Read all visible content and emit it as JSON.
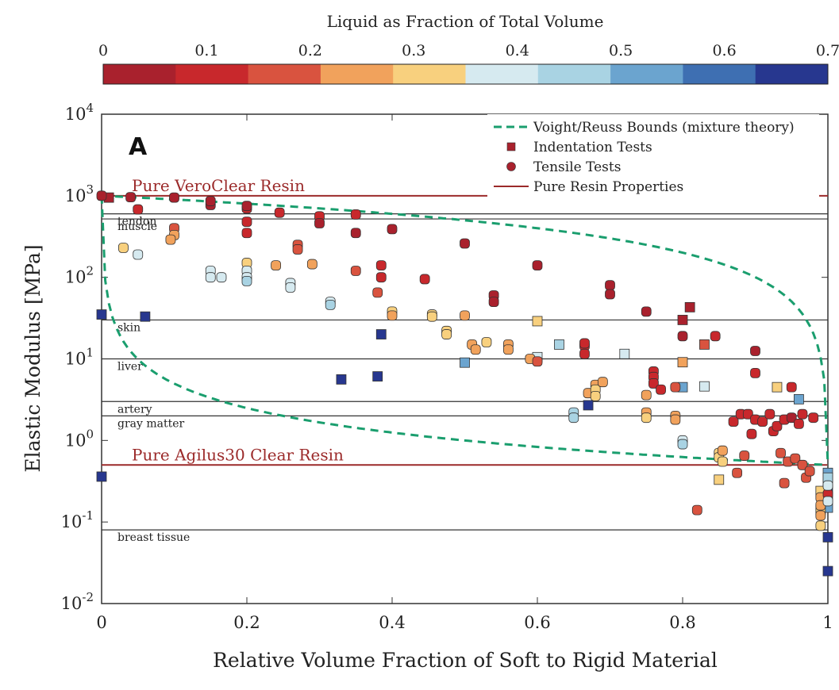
{
  "colorbar": {
    "title": "Liquid as Fraction of Total Volume",
    "ticks": [
      "0",
      "0.1",
      "0.2",
      "0.3",
      "0.4",
      "0.5",
      "0.6",
      "0.7"
    ],
    "range": [
      0,
      0.7
    ],
    "colors": [
      "#a9212d",
      "#c8282c",
      "#d9533f",
      "#f1a25c",
      "#f8d07e",
      "#d6eaf0",
      "#a9d3e3",
      "#6ba4cf",
      "#3e6fb2",
      "#27378f"
    ]
  },
  "chart_data": {
    "type": "scatter",
    "panel_label": "A",
    "xlabel": "Relative Volume Fraction of Soft to Rigid Material",
    "ylabel": "Elastic Modulus [MPa]",
    "xlim": [
      0,
      1
    ],
    "ylim": [
      0.01,
      10000
    ],
    "yscale": "log",
    "x_ticks": [
      "0",
      "0.2",
      "0.4",
      "0.6",
      "0.8",
      "1"
    ],
    "x_tick_values": [
      0,
      0.2,
      0.4,
      0.6,
      0.8,
      1
    ],
    "y_ticks": [
      {
        "value": 0.01,
        "base": "10",
        "exp": "-2"
      },
      {
        "value": 0.1,
        "base": "10",
        "exp": "-1"
      },
      {
        "value": 1,
        "base": "10",
        "exp": "0"
      },
      {
        "value": 10,
        "base": "10",
        "exp": "1"
      },
      {
        "value": 100,
        "base": "10",
        "exp": "2"
      },
      {
        "value": 1000,
        "base": "10",
        "exp": "3"
      },
      {
        "value": 10000,
        "base": "10",
        "exp": "4"
      }
    ],
    "legend_position": "top-right",
    "legend": [
      {
        "label": "Voight/Reuss Bounds (mixture theory)",
        "kind": "dashed",
        "color": "#1a9e6e"
      },
      {
        "label": "Indentation Tests",
        "kind": "square",
        "color": "#a9212d"
      },
      {
        "label": "Tensile Tests",
        "kind": "circle",
        "color": "#a9212d"
      },
      {
        "label": "Pure Resin Properties",
        "kind": "line",
        "color": "#9b2a2a"
      }
    ],
    "pure_resins": [
      {
        "label": "Pure VeroClear Resin",
        "value": 1000,
        "color": "#9b2a2a"
      },
      {
        "label": "Pure Agilus30 Clear Resin",
        "value": 0.5,
        "color": "#9b2a2a"
      }
    ],
    "tissues": [
      {
        "label": "tendon",
        "value": 600
      },
      {
        "label": "muscle",
        "value": 520
      },
      {
        "label": "skin",
        "value": 30
      },
      {
        "label": "liver",
        "value": 10
      },
      {
        "label": "artery",
        "value": 3
      },
      {
        "label": "gray matter",
        "value": 2
      },
      {
        "label": "breast tissue",
        "value": 0.08
      }
    ],
    "bounds": {
      "E_rigid": 1000,
      "E_soft": 0.5,
      "color": "#1a9e6e"
    },
    "series": [
      {
        "name": "Indentation Tests",
        "marker": "square",
        "points": [
          [
            0.0,
            35,
            0.69
          ],
          [
            0.0,
            0.36,
            0.69
          ],
          [
            0.01,
            950,
            0.02
          ],
          [
            0.06,
            33,
            0.69
          ],
          [
            0.33,
            5.6,
            0.69
          ],
          [
            0.38,
            6.1,
            0.69
          ],
          [
            0.385,
            20,
            0.66
          ],
          [
            0.5,
            9,
            0.55
          ],
          [
            0.6,
            29,
            0.34
          ],
          [
            0.6,
            10.5,
            0.4
          ],
          [
            0.63,
            15,
            0.42
          ],
          [
            0.67,
            2.7,
            0.69
          ],
          [
            0.72,
            11.5,
            0.38
          ],
          [
            0.8,
            4.5,
            0.55
          ],
          [
            0.8,
            9.1,
            0.23
          ],
          [
            0.8,
            30,
            0.04
          ],
          [
            0.81,
            43,
            0.05
          ],
          [
            0.83,
            4.6,
            0.38
          ],
          [
            0.83,
            15,
            0.16
          ],
          [
            0.85,
            0.33,
            0.3
          ],
          [
            0.93,
            4.5,
            0.32
          ],
          [
            0.96,
            3.2,
            0.52
          ],
          [
            1.0,
            0.065,
            0.69
          ],
          [
            1.0,
            0.025,
            0.69
          ],
          [
            1.0,
            0.4,
            0.52
          ],
          [
            1.0,
            0.3,
            0.55
          ],
          [
            1.0,
            0.25,
            0.69
          ],
          [
            1.0,
            0.2,
            0.45
          ],
          [
            1.0,
            0.15,
            0.5
          ],
          [
            0.99,
            0.24,
            0.3
          ],
          [
            0.99,
            0.14,
            0.3
          ],
          [
            1.0,
            0.35,
            0.48
          ]
        ]
      },
      {
        "name": "Tensile Tests",
        "marker": "circle",
        "points": [
          [
            0.0,
            1000,
            0.02
          ],
          [
            0.04,
            960,
            0.04
          ],
          [
            0.05,
            680,
            0.1
          ],
          [
            0.1,
            950,
            0.03
          ],
          [
            0.15,
            770,
            0.06
          ],
          [
            0.15,
            860,
            0.04
          ],
          [
            0.2,
            700,
            0.07
          ],
          [
            0.2,
            750,
            0.05
          ],
          [
            0.2,
            480,
            0.09
          ],
          [
            0.2,
            350,
            0.11
          ],
          [
            0.245,
            620,
            0.08
          ],
          [
            0.3,
            560,
            0.08
          ],
          [
            0.3,
            460,
            0.06
          ],
          [
            0.35,
            590,
            0.08
          ],
          [
            0.35,
            350,
            0.04
          ],
          [
            0.4,
            390,
            0.05
          ],
          [
            0.5,
            260,
            0.04
          ],
          [
            0.6,
            140,
            0.05
          ],
          [
            0.7,
            80,
            0.04
          ],
          [
            0.7,
            62,
            0.06
          ],
          [
            0.54,
            60,
            0.04
          ],
          [
            0.54,
            50,
            0.06
          ],
          [
            0.385,
            140,
            0.08
          ],
          [
            0.385,
            100,
            0.1
          ],
          [
            0.35,
            120,
            0.16
          ],
          [
            0.38,
            65,
            0.16
          ],
          [
            0.445,
            95,
            0.09
          ],
          [
            0.1,
            400,
            0.2
          ],
          [
            0.1,
            330,
            0.24
          ],
          [
            0.095,
            290,
            0.27
          ],
          [
            0.03,
            230,
            0.32
          ],
          [
            0.05,
            190,
            0.38
          ],
          [
            0.15,
            120,
            0.38
          ],
          [
            0.15,
            100,
            0.4
          ],
          [
            0.165,
            100,
            0.41
          ],
          [
            0.2,
            150,
            0.34
          ],
          [
            0.2,
            120,
            0.36
          ],
          [
            0.2,
            100,
            0.39
          ],
          [
            0.2,
            90,
            0.42
          ],
          [
            0.26,
            85,
            0.39
          ],
          [
            0.26,
            75,
            0.41
          ],
          [
            0.315,
            50,
            0.41
          ],
          [
            0.315,
            46,
            0.43
          ],
          [
            0.24,
            140,
            0.24
          ],
          [
            0.27,
            250,
            0.16
          ],
          [
            0.27,
            220,
            0.18
          ],
          [
            0.29,
            145,
            0.27
          ],
          [
            0.4,
            38,
            0.3
          ],
          [
            0.4,
            34,
            0.26
          ],
          [
            0.455,
            35,
            0.28
          ],
          [
            0.455,
            33,
            0.3
          ],
          [
            0.5,
            34,
            0.26
          ],
          [
            0.475,
            22,
            0.28
          ],
          [
            0.475,
            20,
            0.3
          ],
          [
            0.51,
            15,
            0.27
          ],
          [
            0.515,
            13,
            0.26
          ],
          [
            0.53,
            16,
            0.28
          ],
          [
            0.56,
            15,
            0.22
          ],
          [
            0.56,
            13,
            0.24
          ],
          [
            0.59,
            10,
            0.25
          ],
          [
            0.6,
            9.3,
            0.2
          ],
          [
            0.665,
            14.5,
            0.1
          ],
          [
            0.665,
            11.5,
            0.12
          ],
          [
            0.665,
            15.5,
            0.08
          ],
          [
            0.65,
            2.2,
            0.42
          ],
          [
            0.65,
            1.9,
            0.44
          ],
          [
            0.67,
            3.8,
            0.25
          ],
          [
            0.68,
            4.8,
            0.27
          ],
          [
            0.68,
            4.2,
            0.3
          ],
          [
            0.68,
            3.5,
            0.29
          ],
          [
            0.69,
            5.2,
            0.26
          ],
          [
            0.75,
            38,
            0.05
          ],
          [
            0.75,
            3.6,
            0.22
          ],
          [
            0.75,
            2.2,
            0.25
          ],
          [
            0.75,
            1.9,
            0.28
          ],
          [
            0.76,
            7,
            0.07
          ],
          [
            0.76,
            6,
            0.09
          ],
          [
            0.76,
            5,
            0.11
          ],
          [
            0.77,
            4.2,
            0.12
          ],
          [
            0.79,
            4.5,
            0.2
          ],
          [
            0.79,
            2,
            0.24
          ],
          [
            0.79,
            1.8,
            0.26
          ],
          [
            0.8,
            1,
            0.4
          ],
          [
            0.8,
            0.9,
            0.42
          ],
          [
            0.8,
            19,
            0.06
          ],
          [
            0.82,
            0.14,
            0.2
          ],
          [
            0.845,
            19,
            0.08
          ],
          [
            0.85,
            0.7,
            0.28
          ],
          [
            0.85,
            0.62,
            0.3
          ],
          [
            0.855,
            0.55,
            0.32
          ],
          [
            0.855,
            0.75,
            0.26
          ],
          [
            0.87,
            1.7,
            0.12
          ],
          [
            0.875,
            0.4,
            0.2
          ],
          [
            0.88,
            2.1,
            0.12
          ],
          [
            0.885,
            0.65,
            0.14
          ],
          [
            0.89,
            2.1,
            0.1
          ],
          [
            0.895,
            1.2,
            0.09
          ],
          [
            0.9,
            6.7,
            0.07
          ],
          [
            0.9,
            12.5,
            0.05
          ],
          [
            0.9,
            1.8,
            0.11
          ],
          [
            0.91,
            1.7,
            0.12
          ],
          [
            0.92,
            2.1,
            0.1
          ],
          [
            0.925,
            1.3,
            0.11
          ],
          [
            0.93,
            1.5,
            0.1
          ],
          [
            0.935,
            0.7,
            0.2
          ],
          [
            0.94,
            1.8,
            0.12
          ],
          [
            0.94,
            0.3,
            0.2
          ],
          [
            0.945,
            0.55,
            0.16
          ],
          [
            0.95,
            4.5,
            0.11
          ],
          [
            0.95,
            1.9,
            0.06
          ],
          [
            0.955,
            0.6,
            0.14
          ],
          [
            0.96,
            1.6,
            0.12
          ],
          [
            0.965,
            2.1,
            0.11
          ],
          [
            0.965,
            0.5,
            0.2
          ],
          [
            0.97,
            0.35,
            0.18
          ],
          [
            0.975,
            0.42,
            0.2
          ],
          [
            0.98,
            1.9,
            0.1
          ],
          [
            0.99,
            0.2,
            0.25
          ],
          [
            0.99,
            0.16,
            0.25
          ],
          [
            0.99,
            0.12,
            0.27
          ],
          [
            0.99,
            0.09,
            0.28
          ],
          [
            1.0,
            0.22,
            0.12
          ],
          [
            1.0,
            0.28,
            0.4
          ],
          [
            1.0,
            0.18,
            0.36
          ]
        ]
      }
    ]
  }
}
